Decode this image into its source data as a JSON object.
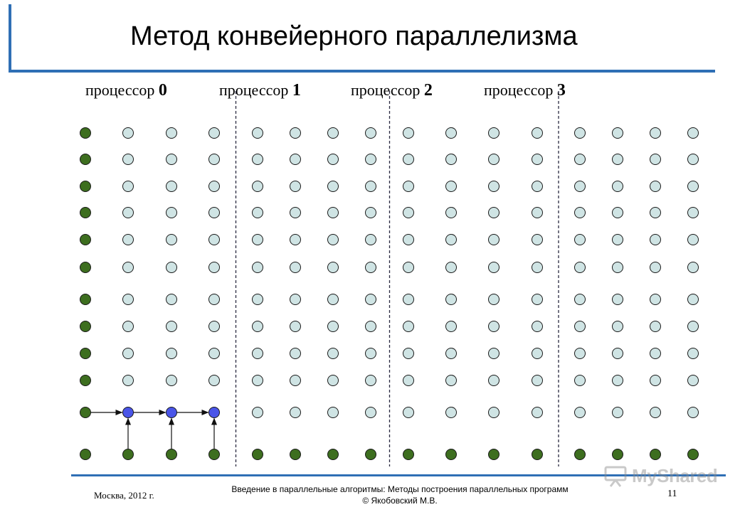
{
  "title": "Метод конвейерного параллелизма",
  "processors": [
    {
      "label": "процессор",
      "number": "0"
    },
    {
      "label": "процессор",
      "number": "1"
    },
    {
      "label": "процессор",
      "number": "2"
    },
    {
      "label": "процессор",
      "number": "3"
    }
  ],
  "grid": {
    "rows": 12,
    "cols": 16,
    "boundary_after_cols": [
      4,
      8,
      12
    ],
    "computed_cols_in_row11": 3,
    "colors": {
      "boundary": "#3d6e1f",
      "interior": "#cfe4e4",
      "active": "#4a55e8",
      "stroke": "#1a1a1a",
      "divider": "#2a2a40"
    }
  },
  "footer": {
    "left": "Москва, 2012 г.",
    "center_line1": "Введение в параллельные алгоритмы: Методы построения параллельных программ",
    "center_line2": "© Якобовский М.В.",
    "page": "11"
  },
  "watermark": {
    "text": "MyShared",
    "icon": "projector-icon"
  }
}
